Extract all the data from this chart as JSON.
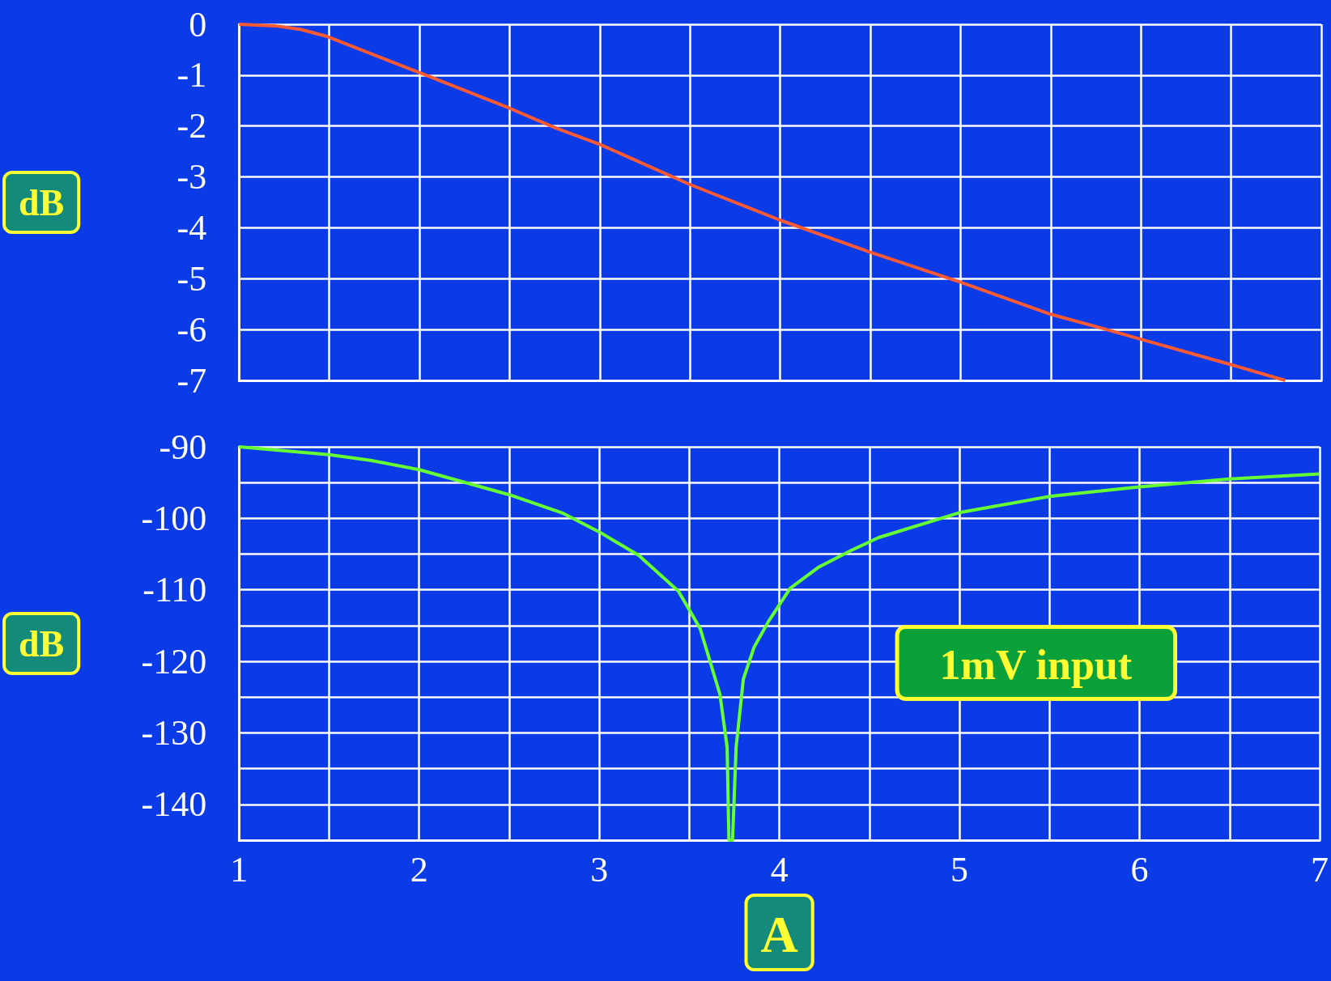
{
  "chart_data": [
    {
      "type": "line",
      "ylabel": "dB",
      "xlim": [
        1,
        7
      ],
      "xticks": [
        1,
        {
          "value": 1.5,
          "label": null
        },
        2,
        {
          "value": 2.5,
          "label": null
        },
        3,
        {
          "value": 3.5,
          "label": null
        },
        4,
        {
          "value": 4.5,
          "label": null
        },
        5,
        {
          "value": 5.5,
          "label": null
        },
        6,
        {
          "value": 6.5,
          "label": null
        },
        7
      ],
      "ylim": [
        -7,
        0
      ],
      "yticks": [
        0,
        -1,
        -2,
        -3,
        -4,
        -5,
        -6,
        -7
      ],
      "grid": true,
      "tick_labels": "y",
      "series": [
        {
          "color": "#ff5a32",
          "x": [
            1,
            1.2,
            1.34,
            1.48,
            2,
            2.5,
            2.75,
            3,
            3.5,
            4,
            4.5,
            5,
            5.5,
            5.79,
            6,
            6.5,
            6.8
          ],
          "values": [
            0,
            -0.03,
            -0.1,
            -0.23,
            -0.95,
            -1.65,
            -2.03,
            -2.36,
            -3.15,
            -3.85,
            -4.48,
            -5.07,
            -5.7,
            -5.98,
            -6.19,
            -6.69,
            -7.0
          ]
        }
      ]
    },
    {
      "type": "line",
      "ylabel": "dB",
      "xlabel": "A",
      "annotations": [
        "1mV input"
      ],
      "xlim": [
        1,
        7
      ],
      "xticks": [
        1,
        {
          "value": 1.5,
          "label": null
        },
        2,
        {
          "value": 2.5,
          "label": null
        },
        3,
        {
          "value": 3.5,
          "label": null
        },
        4,
        {
          "value": 4.5,
          "label": null
        },
        5,
        {
          "value": 5.5,
          "label": null
        },
        6,
        {
          "value": 6.5,
          "label": null
        },
        7
      ],
      "ylim": [
        -145,
        -90
      ],
      "yticks": [
        -90,
        {
          "value": -95,
          "label": null
        },
        -100,
        {
          "value": -105,
          "label": null
        },
        -110,
        {
          "value": -115,
          "label": null
        },
        -120,
        {
          "value": -125,
          "label": null
        },
        -130,
        {
          "value": -135,
          "label": null
        },
        -140,
        {
          "value": -145,
          "label": null
        }
      ],
      "grid": true,
      "series": [
        {
          "color": "#66ff33",
          "x": [
            1,
            1.5,
            1.73,
            2,
            2.5,
            2.8,
            3,
            3.22,
            3.44,
            3.56,
            3.67,
            3.71,
            3.72,
            3.74,
            3.76,
            3.8,
            3.86,
            3.94,
            4.06,
            4.22,
            4.39,
            4.55,
            5,
            5.51,
            6,
            6.5,
            7
          ],
          "values": [
            -90,
            -91.1,
            -91.9,
            -93.2,
            -96.7,
            -99.3,
            -101.9,
            -105.2,
            -110.2,
            -115.4,
            -124.6,
            -132,
            -145,
            -145,
            -132,
            -122.5,
            -118,
            -114.4,
            -109.8,
            -106.8,
            -104.6,
            -102.7,
            -99.2,
            -96.9,
            -95.6,
            -94.5,
            -93.8
          ]
        }
      ]
    }
  ]
}
